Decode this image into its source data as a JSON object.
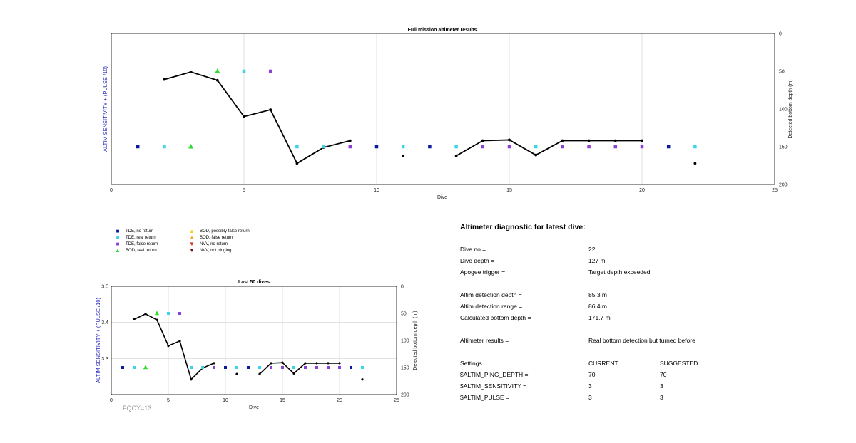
{
  "top_chart": {
    "title": "Full mission altimeter results",
    "xlabel": "Dive",
    "ylabel_left": "ALTIM SENSITIVITY + (PULSE /10)",
    "ylabel_right": "Detected bottom depth (m)",
    "xticks": [
      "0",
      "5",
      "10",
      "15",
      "20",
      "25"
    ],
    "yticks_right": [
      "0",
      "50",
      "100",
      "150",
      "200"
    ]
  },
  "bottom_chart": {
    "title": "Last 50 dives",
    "xlabel": "Dive",
    "ylabel_left": "ALTIM SENSITIVITY + (PULSE /10)",
    "ylabel_right": "Detected bottom depth (m)",
    "xticks": [
      "0",
      "5",
      "10",
      "15",
      "20",
      "25"
    ],
    "yticks_left": [
      "3.5",
      "3.4",
      "3.3"
    ],
    "yticks_right": [
      "0",
      "50",
      "100",
      "150",
      "200"
    ]
  },
  "chart_data": [
    {
      "type": "scatter",
      "title": "Full mission altimeter results",
      "xlabel": "Dive",
      "ylabel": "ALTIM SENSITIVITY + (PULSE /10)",
      "y2label": "Detected bottom depth (m)",
      "xlim": [
        0,
        25
      ],
      "y2lim": [
        200,
        0
      ],
      "grid": true,
      "bottom_depth_line": {
        "x": [
          2,
          3,
          4,
          5,
          6,
          7,
          8,
          9
        ],
        "y": [
          61,
          51,
          62,
          110,
          101,
          172,
          151,
          142
        ]
      },
      "bottom_depth_line_2": {
        "x": [
          13,
          14,
          15,
          16,
          17,
          18,
          19,
          20
        ],
        "y": [
          162,
          142,
          141,
          161,
          142,
          142,
          142,
          142
        ]
      },
      "bottom_depth_points": {
        "x": [
          11,
          22
        ],
        "y": [
          162,
          172
        ]
      },
      "series": [
        {
          "name": "TDE, no return",
          "color": "#0a1a9e",
          "marker": "square",
          "x": [
            1,
            10,
            12,
            21
          ],
          "y": [
            150,
            150,
            150,
            150
          ]
        },
        {
          "name": "TDE, real return",
          "color": "#3ad5e6",
          "marker": "square",
          "x": [
            2,
            5,
            7,
            8,
            11,
            13,
            16,
            22
          ],
          "y": [
            150,
            50,
            150,
            150,
            150,
            150,
            150,
            150
          ]
        },
        {
          "name": "TDE, false return",
          "color": "#8a3fd6",
          "marker": "square",
          "x": [
            6,
            9,
            14,
            15,
            17,
            18,
            19,
            20
          ],
          "y": [
            50,
            150,
            150,
            150,
            150,
            150,
            150,
            150
          ]
        },
        {
          "name": "BOD, real return",
          "color": "#2edb2e",
          "marker": "triangle",
          "x": [
            3,
            4
          ],
          "y": [
            150,
            50
          ]
        }
      ]
    },
    {
      "type": "scatter",
      "title": "Last 50 dives",
      "xlabel": "Dive",
      "ylabel": "ALTIM SENSITIVITY + (PULSE /10)",
      "y2label": "Detected bottom depth (m)",
      "xlim": [
        0,
        25
      ],
      "ylim": [
        3.2,
        3.5
      ],
      "y2lim": [
        200,
        0
      ],
      "grid": true,
      "bottom_depth_line": {
        "x": [
          2,
          3,
          4,
          5,
          6,
          7,
          8,
          9
        ],
        "y": [
          61,
          51,
          62,
          110,
          101,
          172,
          151,
          142
        ]
      },
      "bottom_depth_line_2": {
        "x": [
          13,
          14,
          15,
          16,
          17,
          18,
          19,
          20
        ],
        "y": [
          162,
          142,
          141,
          161,
          142,
          142,
          142,
          142
        ]
      },
      "bottom_depth_points": {
        "x": [
          11,
          22
        ],
        "y": [
          162,
          172
        ]
      },
      "series": [
        {
          "name": "TDE, no return",
          "color": "#0a1a9e",
          "marker": "square",
          "x": [
            1,
            10,
            12,
            21
          ],
          "y": [
            150,
            150,
            150,
            150
          ]
        },
        {
          "name": "TDE, real return",
          "color": "#3ad5e6",
          "marker": "square",
          "x": [
            2,
            5,
            7,
            8,
            11,
            13,
            16,
            22
          ],
          "y": [
            150,
            50,
            150,
            150,
            150,
            150,
            150,
            150
          ]
        },
        {
          "name": "TDE, false return",
          "color": "#8a3fd6",
          "marker": "square",
          "x": [
            6,
            9,
            14,
            15,
            17,
            18,
            19,
            20
          ],
          "y": [
            50,
            150,
            150,
            150,
            150,
            150,
            150,
            150
          ]
        },
        {
          "name": "BOD, real return",
          "color": "#2edb2e",
          "marker": "triangle",
          "x": [
            3,
            4
          ],
          "y": [
            150,
            50
          ]
        }
      ]
    }
  ],
  "legend": [
    {
      "name": "TDE, no return",
      "color": "#0a1a9e",
      "marker": "■"
    },
    {
      "name": "TDE, real return",
      "color": "#3ad5e6",
      "marker": "■"
    },
    {
      "name": "TDE, false return",
      "color": "#8a3fd6",
      "marker": "■"
    },
    {
      "name": "BOD, real return",
      "color": "#2edb2e",
      "marker": "▲"
    },
    {
      "name": "BOD, possibly false return",
      "color": "#f2d21a",
      "marker": "▲"
    },
    {
      "name": "BOD, false return",
      "color": "#f0a020",
      "marker": "▲"
    },
    {
      "name": "NVV, no return",
      "color": "#d2351a",
      "marker": "▼"
    },
    {
      "name": "NVV, not pinging",
      "color": "#7a1010",
      "marker": "▼"
    }
  ],
  "fqcy": "FQCY=13",
  "diagnostic": {
    "title": "Altimeter diagnostic for latest dive:",
    "dive_no_label": "Dive no =",
    "dive_no": "22",
    "dive_depth_label": "Dive depth =",
    "dive_depth": "127 m",
    "apogee_label": "Apogee trigger =",
    "apogee": "Target depth exceeded",
    "det_depth_label": "Altim detection depth =",
    "det_depth": "85.3 m",
    "det_range_label": "Altim detection range =",
    "det_range": "86.4 m",
    "calc_depth_label": "Calculated bottom depth =",
    "calc_depth": "171.7 m",
    "results_label": "Altimeter results =",
    "results": "Real bottom detection but turned before",
    "settings_label": "Settings",
    "current_label": "CURRENT",
    "suggested_label": "SUGGESTED",
    "ping_depth_label": "$ALTIM_PING_DEPTH =",
    "ping_depth_current": "70",
    "ping_depth_suggested": "70",
    "sensitivity_label": "$ALTIM_SENSITIVITY =",
    "sensitivity_current": "3",
    "sensitivity_suggested": "3",
    "pulse_label": "$ALTIM_PULSE =",
    "pulse_current": "3",
    "pulse_suggested": "3"
  }
}
